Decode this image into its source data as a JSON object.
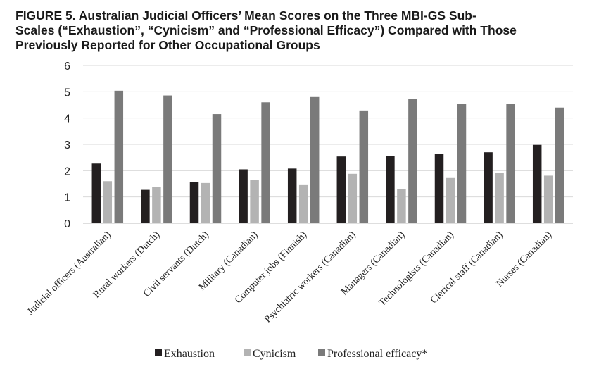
{
  "chart_data": {
    "type": "bar",
    "title": "FIGURE 5.  Australian Judicial Officers’ Mean Scores on the Three MBI-GS Sub-Scales (“Exhaustion”, “Cynicism” and “Professional Efficacy”) Compared with Those Previously Reported for Other Occupational Groups",
    "title_lines": [
      "FIGURE 5.  Australian Judicial Officers’ Mean Scores on the Three MBI-GS Sub-",
      "Scales (“Exhaustion”, “Cynicism” and “Professional Efficacy”) Compared with Those",
      "Previously Reported for Other Occupational Groups"
    ],
    "categories": [
      "Judicial officers (Australian)",
      "Rural workers (Dutch)",
      "Civil servants (Dutch)",
      "Military (Canadian)",
      "Computer jobs (Finnish)",
      "Psychiatric workers (Canadian)",
      "Managers (Canadian)",
      "Technologists (Canadian)",
      "Clerical staff (Canadian)",
      "Nurses (Canadian)"
    ],
    "series": [
      {
        "name": "Exhaustion",
        "color": "#231f20",
        "values": [
          2.27,
          1.27,
          1.57,
          2.05,
          2.08,
          2.54,
          2.56,
          2.65,
          2.7,
          2.98
        ]
      },
      {
        "name": "Cynicism",
        "color": "#b3b3b3",
        "values": [
          1.6,
          1.38,
          1.53,
          1.64,
          1.45,
          1.88,
          1.31,
          1.72,
          1.92,
          1.81
        ]
      },
      {
        "name": "Professional efficacy*",
        "color": "#7a7a7a",
        "values": [
          5.04,
          4.86,
          4.15,
          4.6,
          4.8,
          4.29,
          4.73,
          4.54,
          4.54,
          4.4
        ]
      }
    ],
    "y_ticks": [
      "0",
      "1",
      "2",
      "3",
      "4",
      "5",
      "6"
    ],
    "ylim": [
      0,
      6
    ],
    "grid": true,
    "legend_position": "bottom-center",
    "xlabel": "",
    "ylabel": ""
  }
}
